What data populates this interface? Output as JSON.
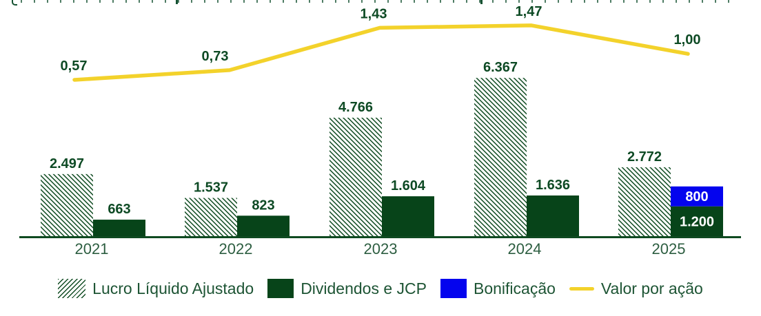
{
  "chart_data": {
    "type": "combo-bar-line",
    "categories": [
      "2021",
      "2022",
      "2023",
      "2024",
      "2025"
    ],
    "series": [
      {
        "name": "Lucro Líquido Ajustado",
        "type": "bar",
        "style": "hatched",
        "values": [
          2497,
          1537,
          4766,
          6367,
          2772
        ],
        "labels": [
          "2.497",
          "1.537",
          "4.766",
          "6.367",
          "2.772"
        ]
      },
      {
        "name": "Dividendos e JCP",
        "type": "bar",
        "style": "solid",
        "values": [
          663,
          823,
          1604,
          1636,
          1200
        ],
        "labels": [
          "663",
          "823",
          "1.604",
          "1.636",
          "1.200"
        ]
      },
      {
        "name": "Bonificação",
        "type": "bar",
        "style": "solid-stacked",
        "values": [
          0,
          0,
          0,
          0,
          800
        ],
        "labels": [
          "",
          "",
          "",
          "",
          "800"
        ]
      },
      {
        "name": "Valor por ação",
        "type": "line",
        "values": [
          0.57,
          0.73,
          1.43,
          1.47,
          1.0
        ],
        "labels": [
          "0,57",
          "0,73",
          "1,43",
          "1,47",
          "1,00"
        ]
      }
    ],
    "legend": {
      "position": "bottom"
    },
    "grid": false,
    "value_axis_visible": false,
    "colors": {
      "bar_green": "#074419",
      "bonus_blue": "#0404ee",
      "line_yellow": "#f3d22b",
      "hatch_green": "#0e4a20",
      "label_green": "#0d4a24",
      "year_green": "#2d5e41",
      "legend_green": "#1d5434",
      "axis": "#0e4a20"
    }
  }
}
